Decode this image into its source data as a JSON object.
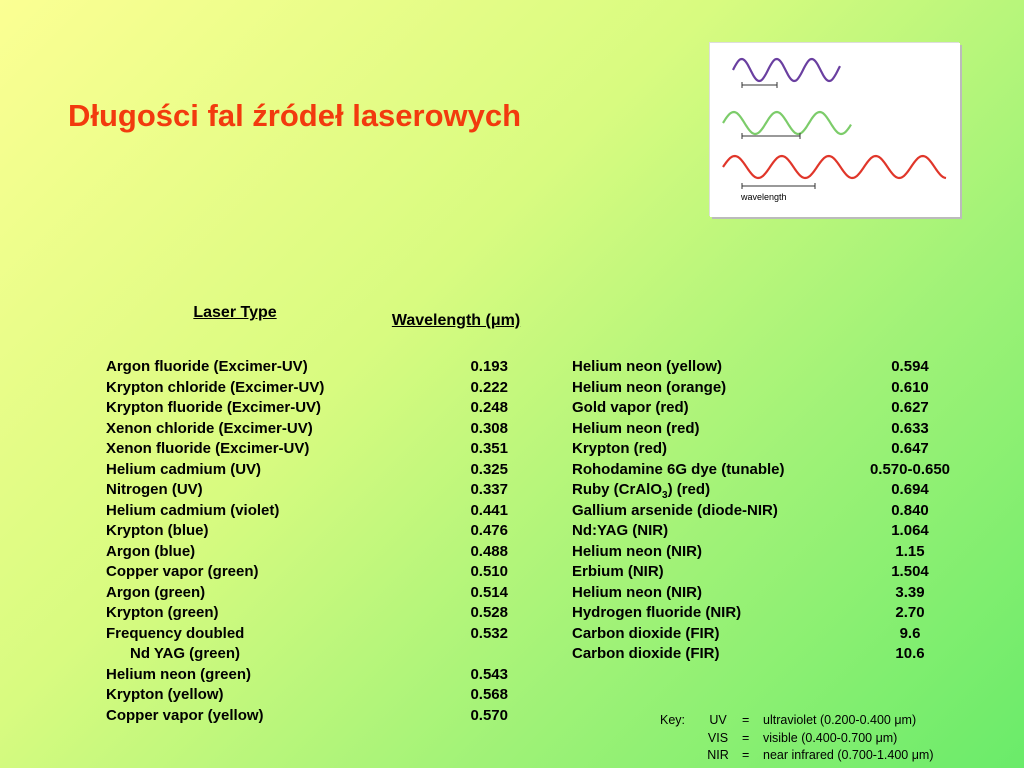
{
  "title": "Długości fal źródeł laserowych",
  "figure": {
    "label": "wavelength"
  },
  "table": {
    "headers": [
      "Laser Type",
      "Wavelength (μm)"
    ],
    "left": [
      {
        "name": "Argon fluoride (Excimer-UV)",
        "value": "0.193"
      },
      {
        "name": "Krypton chloride (Excimer-UV)",
        "value": "0.222"
      },
      {
        "name": "Krypton fluoride (Excimer-UV)",
        "value": "0.248"
      },
      {
        "name": "Xenon chloride (Excimer-UV)",
        "value": "0.308"
      },
      {
        "name": "Xenon fluoride (Excimer-UV)",
        "value": "0.351"
      },
      {
        "name": "Helium cadmium (UV)",
        "value": "0.325"
      },
      {
        "name": "Nitrogen (UV)",
        "value": "0.337"
      },
      {
        "name": "Helium cadmium (violet)",
        "value": "0.441"
      },
      {
        "name": "Krypton (blue)",
        "value": "0.476"
      },
      {
        "name": "Argon (blue)",
        "value": "0.488"
      },
      {
        "name": "Copper vapor (green)",
        "value": "0.510"
      },
      {
        "name": "Argon (green)",
        "value": "0.514"
      },
      {
        "name": "Krypton (green)",
        "value": "0.528"
      },
      {
        "name": "Frequency doubled",
        "value": "0.532",
        "continuation": "Nd YAG (green)"
      },
      {
        "name": "Helium neon (green)",
        "value": "0.543"
      },
      {
        "name": "Krypton (yellow)",
        "value": "0.568"
      },
      {
        "name": "Copper vapor (yellow)",
        "value": "0.570"
      }
    ],
    "right": [
      {
        "name": "Helium neon (yellow)",
        "value": "0.594"
      },
      {
        "name": "Helium neon (orange)",
        "value": "0.610"
      },
      {
        "name": "Gold vapor (red)",
        "value": "0.627"
      },
      {
        "name": "Helium neon (red)",
        "value": "0.633"
      },
      {
        "name": "Krypton (red)",
        "value": "0.647"
      },
      {
        "name": "Rohodamine 6G dye (tunable)",
        "value": "0.570-0.650"
      },
      {
        "name_parts": [
          "Ruby (CrAlO",
          "3",
          ") (red)"
        ],
        "value": "0.694"
      },
      {
        "name": "Gallium arsenide (diode-NIR)",
        "value": "0.840"
      },
      {
        "name": "Nd:YAG (NIR)",
        "value": "1.064"
      },
      {
        "name": "Helium neon (NIR)",
        "value": "1.15"
      },
      {
        "name": "Erbium (NIR)",
        "value": "1.504"
      },
      {
        "name": "Helium neon (NIR)",
        "value": "3.39"
      },
      {
        "name": "Hydrogen fluoride (NIR)",
        "value": "2.70"
      },
      {
        "name": "Carbon dioxide (FIR)",
        "value": "9.6"
      },
      {
        "name": "Carbon dioxide (FIR)",
        "value": "10.6"
      }
    ]
  },
  "key": {
    "label": "Key:",
    "rows": [
      [
        "UV",
        "=",
        "ultraviolet (0.200-0.400 μm)"
      ],
      [
        "VIS",
        "=",
        "visible (0.400-0.700 μm)"
      ],
      [
        "NIR",
        "=",
        "near infrared (0.700-1.400 μm)"
      ]
    ]
  }
}
